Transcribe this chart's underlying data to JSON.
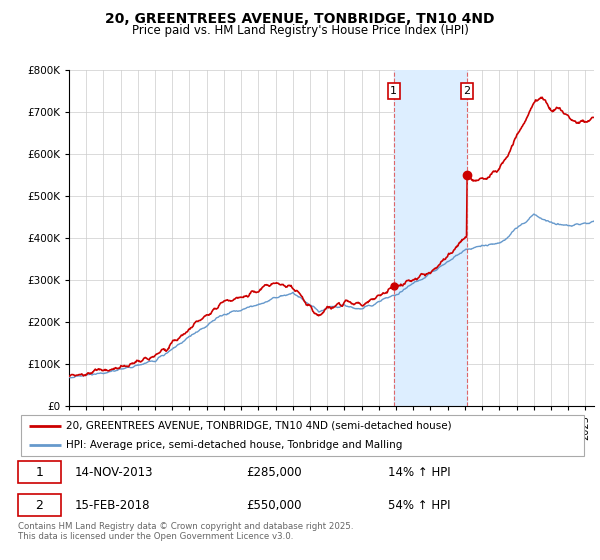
{
  "title": "20, GREENTREES AVENUE, TONBRIDGE, TN10 4ND",
  "subtitle": "Price paid vs. HM Land Registry's House Price Index (HPI)",
  "legend_line1": "20, GREENTREES AVENUE, TONBRIDGE, TN10 4ND (semi-detached house)",
  "legend_line2": "HPI: Average price, semi-detached house, Tonbridge and Malling",
  "annotation1_date": "14-NOV-2013",
  "annotation1_price": "£285,000",
  "annotation1_hpi": "14% ↑ HPI",
  "annotation2_date": "15-FEB-2018",
  "annotation2_price": "£550,000",
  "annotation2_hpi": "54% ↑ HPI",
  "footer": "Contains HM Land Registry data © Crown copyright and database right 2025.\nThis data is licensed under the Open Government Licence v3.0.",
  "red_color": "#cc0000",
  "blue_color": "#6699cc",
  "highlight_color": "#ddeeff",
  "vline_color": "#dd4444",
  "grid_color": "#cccccc",
  "bg_color": "#ffffff",
  "ylim": [
    0,
    800000
  ],
  "ytick_step": 100000,
  "xlim_start": 1995,
  "xlim_end": 2025.5,
  "purchase1_year": 2013.87,
  "purchase2_year": 2018.12,
  "purchase1_price": 285000,
  "purchase2_price": 550000
}
